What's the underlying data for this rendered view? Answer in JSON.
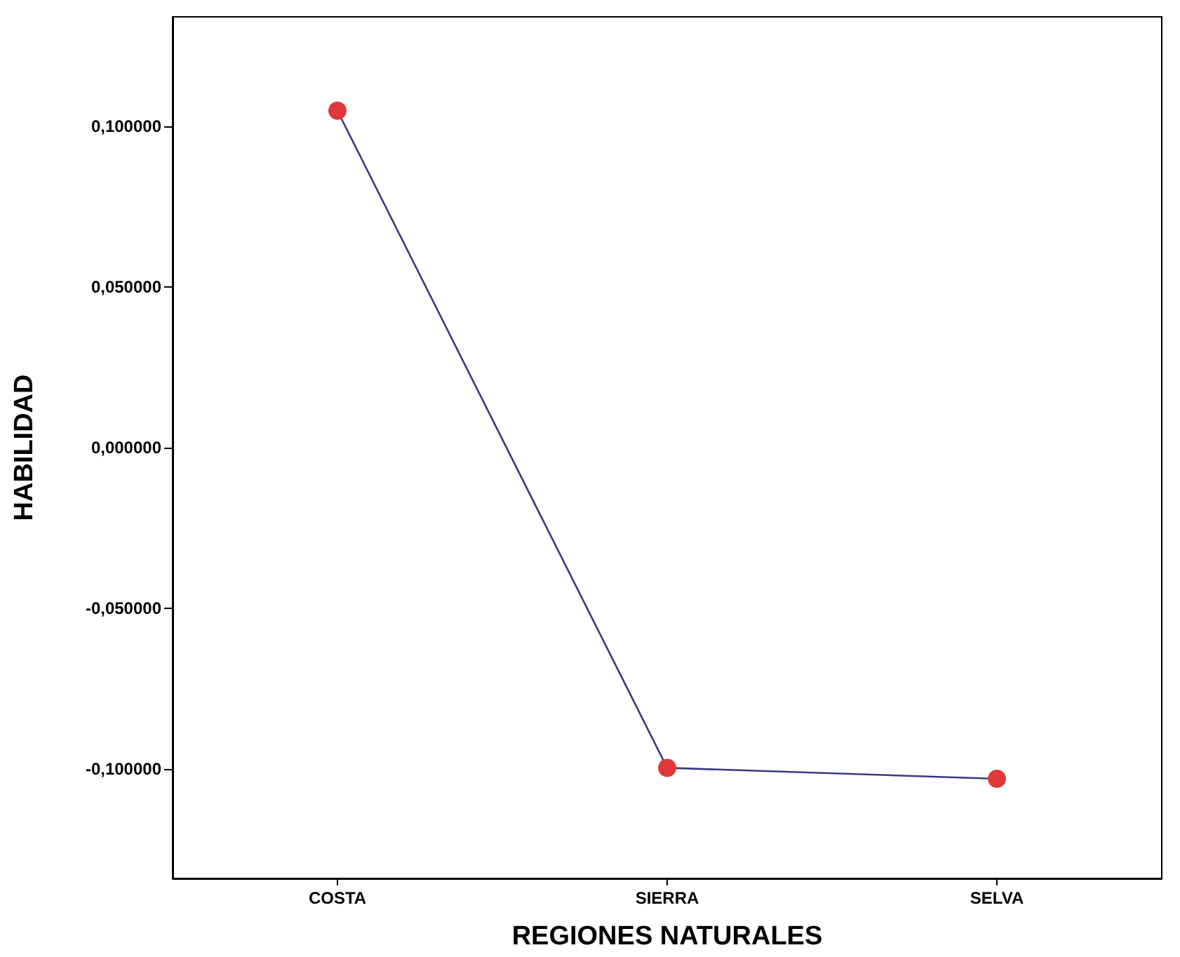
{
  "chart_data": {
    "type": "line",
    "xlabel": "REGIONES NATURALES",
    "ylabel": "HABILIDAD",
    "categories": [
      "COSTA",
      "SIERRA",
      "SELVA"
    ],
    "series": [
      {
        "color": "#3a3a80",
        "colors": [
          "#e03838",
          "#e03838",
          "#e03838"
        ],
        "values": [
          0.1048,
          -0.0996,
          -0.103
        ]
      }
    ],
    "ylim": [
      -0.134,
      0.134
    ],
    "yticks": [
      {
        "value": -0.1,
        "label": "-0,100000"
      },
      {
        "value": -0.05,
        "label": "-0,050000"
      },
      {
        "value": 0,
        "label": "0,000000"
      },
      {
        "value": 0.05,
        "label": "0,050000"
      },
      {
        "value": 0.1,
        "label": "0,100000"
      }
    ],
    "grid": false,
    "marker": "circle",
    "line_style": "solid"
  }
}
